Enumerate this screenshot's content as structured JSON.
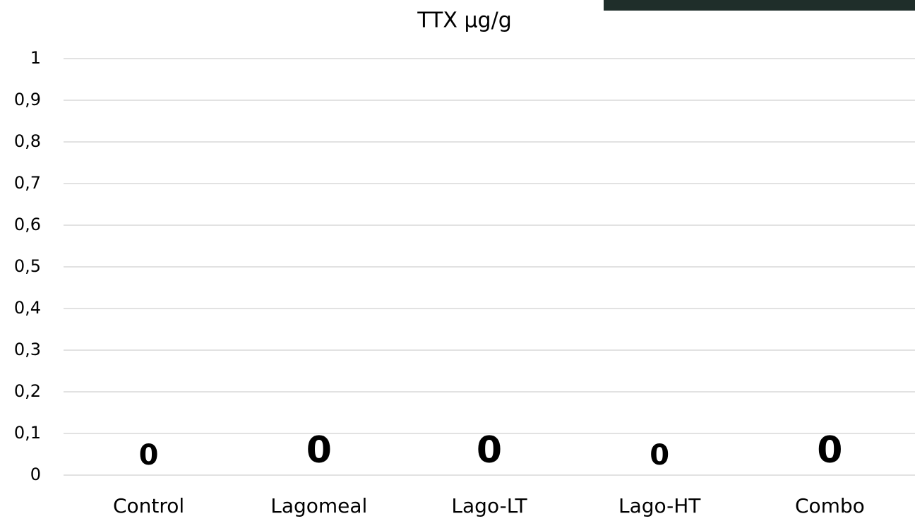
{
  "chart_data": {
    "type": "bar",
    "title": "TTX µg/g",
    "categories": [
      "Control",
      "Lagomeal",
      "Lago-LT",
      "Lago-HT",
      "Combo"
    ],
    "values": [
      0,
      0,
      0,
      0,
      0
    ],
    "color": "#4472c4",
    "ylim": [
      0,
      1
    ],
    "yticks": [
      0,
      {
        "value": 0.1,
        "label": "0,1"
      },
      {
        "value": 0.2,
        "label": "0,2"
      },
      {
        "value": 0.3,
        "label": "0,3"
      },
      {
        "value": 0.4,
        "label": "0,4"
      },
      {
        "value": 0.5,
        "label": "0,5"
      },
      {
        "value": 0.6,
        "label": "0,6"
      },
      {
        "value": 0.7,
        "label": "0,7"
      },
      {
        "value": 0.8,
        "label": "0,8"
      },
      {
        "value": 0.9,
        "label": "0,9"
      },
      1
    ],
    "grid": true
  }
}
